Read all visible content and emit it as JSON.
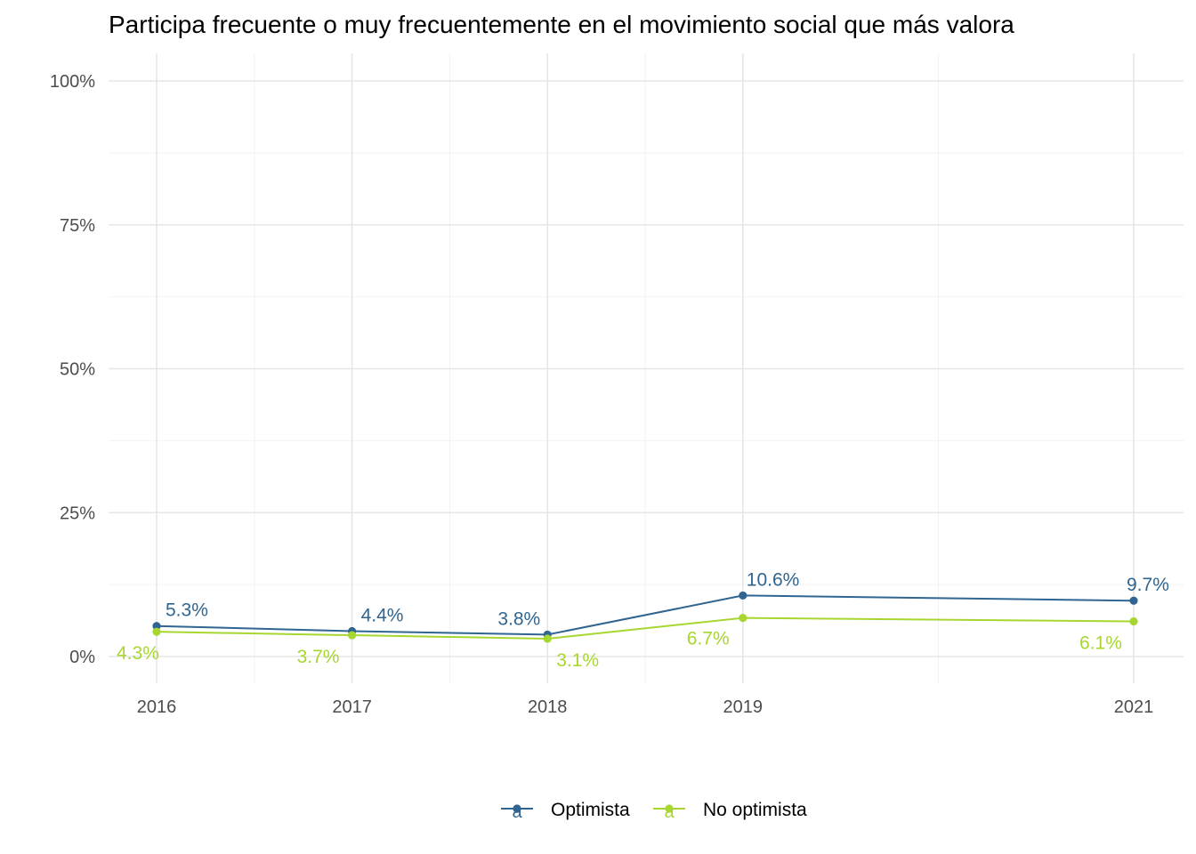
{
  "chart_data": {
    "type": "line",
    "title": "Participa frecuente o muy frecuentemente en el movimiento social que más valora",
    "xlabel": "",
    "ylabel": "",
    "x": [
      2016,
      2017,
      2018,
      2019,
      2021
    ],
    "x_tick_labels": [
      "2016",
      "2017",
      "2018",
      "2019",
      "2021"
    ],
    "ylim": [
      0,
      100
    ],
    "y_ticks": [
      0,
      25,
      50,
      75,
      100
    ],
    "y_tick_labels": [
      "0%",
      "25%",
      "50%",
      "75%",
      "100%"
    ],
    "grid": true,
    "legend_position": "bottom",
    "series": [
      {
        "name": "Optimista",
        "color": "#2F6590",
        "values": [
          5.3,
          4.4,
          3.8,
          10.6,
          9.7
        ],
        "labels": [
          "5.3%",
          "4.4%",
          "3.8%",
          "10.6%",
          "9.7%"
        ]
      },
      {
        "name": "No optimista",
        "color": "#A8D631",
        "values": [
          4.3,
          3.7,
          3.1,
          6.7,
          6.1
        ],
        "labels": [
          "4.3%",
          "3.7%",
          "3.1%",
          "6.7%",
          "6.1%"
        ]
      }
    ]
  }
}
